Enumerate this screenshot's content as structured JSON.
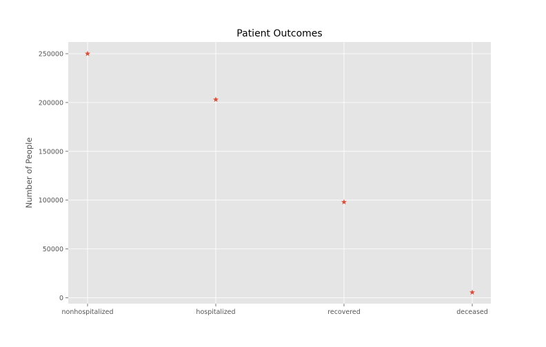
{
  "chart_data": {
    "type": "scatter",
    "title": "Patient Outcomes",
    "xlabel": "",
    "ylabel": "Number of People",
    "categories": [
      "nonhospitalized",
      "hospitalized",
      "recovered",
      "deceased"
    ],
    "values": [
      250000,
      203000,
      98000,
      5500
    ],
    "ylim": [
      -6000,
      262000
    ],
    "yticks": [
      0,
      50000,
      100000,
      150000,
      200000,
      250000
    ],
    "ytick_labels": [
      "0",
      "50000",
      "100000",
      "150000",
      "200000",
      "250000"
    ],
    "marker": "star",
    "grid": true,
    "legend": "none",
    "colors": {
      "background": "#e5e5e5",
      "grid": "#ffffff",
      "marker": "#e24a33",
      "tick": "#555555"
    }
  }
}
